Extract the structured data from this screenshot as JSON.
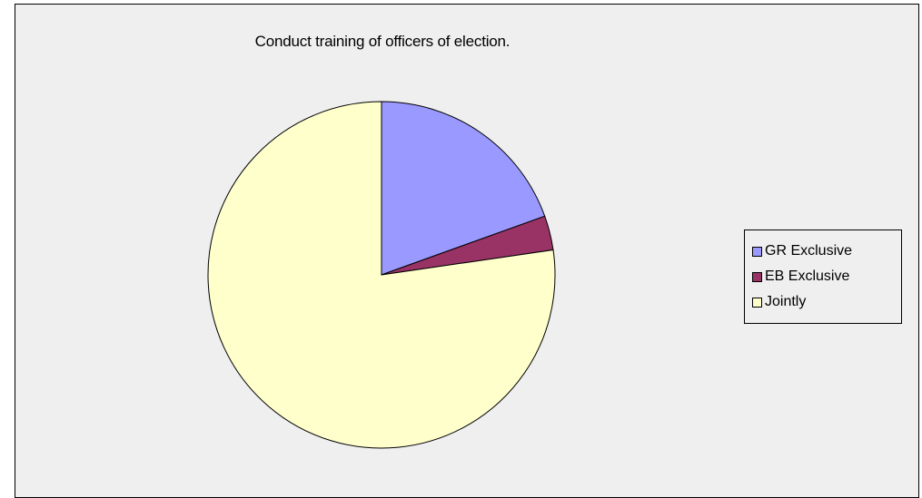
{
  "chart_data": {
    "type": "pie",
    "title": "Conduct training of officers of election.",
    "categories": [
      "GR Exclusive",
      "EB Exclusive",
      "Jointly"
    ],
    "values": [
      19.5,
      3.2,
      77.3
    ],
    "colors": [
      "#9999ff",
      "#993366",
      "#ffffcc"
    ],
    "start_angle": "12 o'clock",
    "direction": "clockwise",
    "legend_position": "right"
  }
}
